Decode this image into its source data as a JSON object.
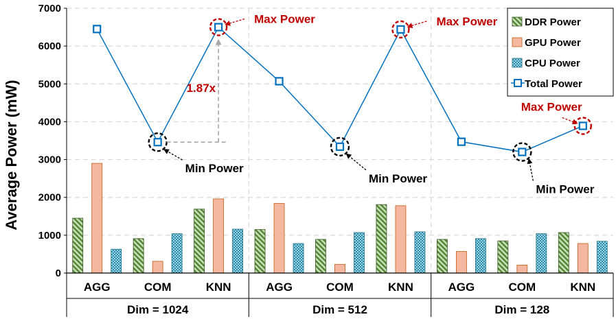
{
  "chart_data": {
    "type": "bar+line",
    "ylabel": "Average Power (mW)",
    "ylim": [
      0,
      7000
    ],
    "yticks": [
      "0",
      "1000",
      "2000",
      "3000",
      "4000",
      "5000",
      "6000",
      "7000"
    ],
    "grid": true,
    "groups": [
      "Dim = 1024",
      "Dim = 512",
      "Dim = 128"
    ],
    "categories": [
      "AGG",
      "COM",
      "KNN",
      "AGG",
      "COM",
      "KNN",
      "AGG",
      "COM",
      "KNN"
    ],
    "series": [
      {
        "name": "DDR Power",
        "type": "bar",
        "color": "#70ad47",
        "values": [
          1450,
          910,
          1690,
          1150,
          890,
          1810,
          890,
          850,
          1070
        ]
      },
      {
        "name": "GPU Power",
        "type": "bar",
        "color": "#f4b183",
        "values": [
          2900,
          310,
          1960,
          1840,
          230,
          1780,
          570,
          210,
          780
        ]
      },
      {
        "name": "CPU Power",
        "type": "bar",
        "color": "#4bacc6",
        "values": [
          630,
          1040,
          1160,
          780,
          1070,
          1090,
          910,
          1040,
          840
        ]
      },
      {
        "name": "Total Power",
        "type": "line",
        "color": "#0070c0",
        "values": [
          6450,
          3460,
          6500,
          5070,
          3340,
          6440,
          3470,
          3200,
          3890
        ]
      }
    ],
    "annotations": {
      "max_label": "Max Power",
      "min_label": "Min Power",
      "ratio_label": "1.87x",
      "max_indices": [
        2,
        5,
        8
      ],
      "min_indices": [
        1,
        4,
        7
      ]
    }
  }
}
